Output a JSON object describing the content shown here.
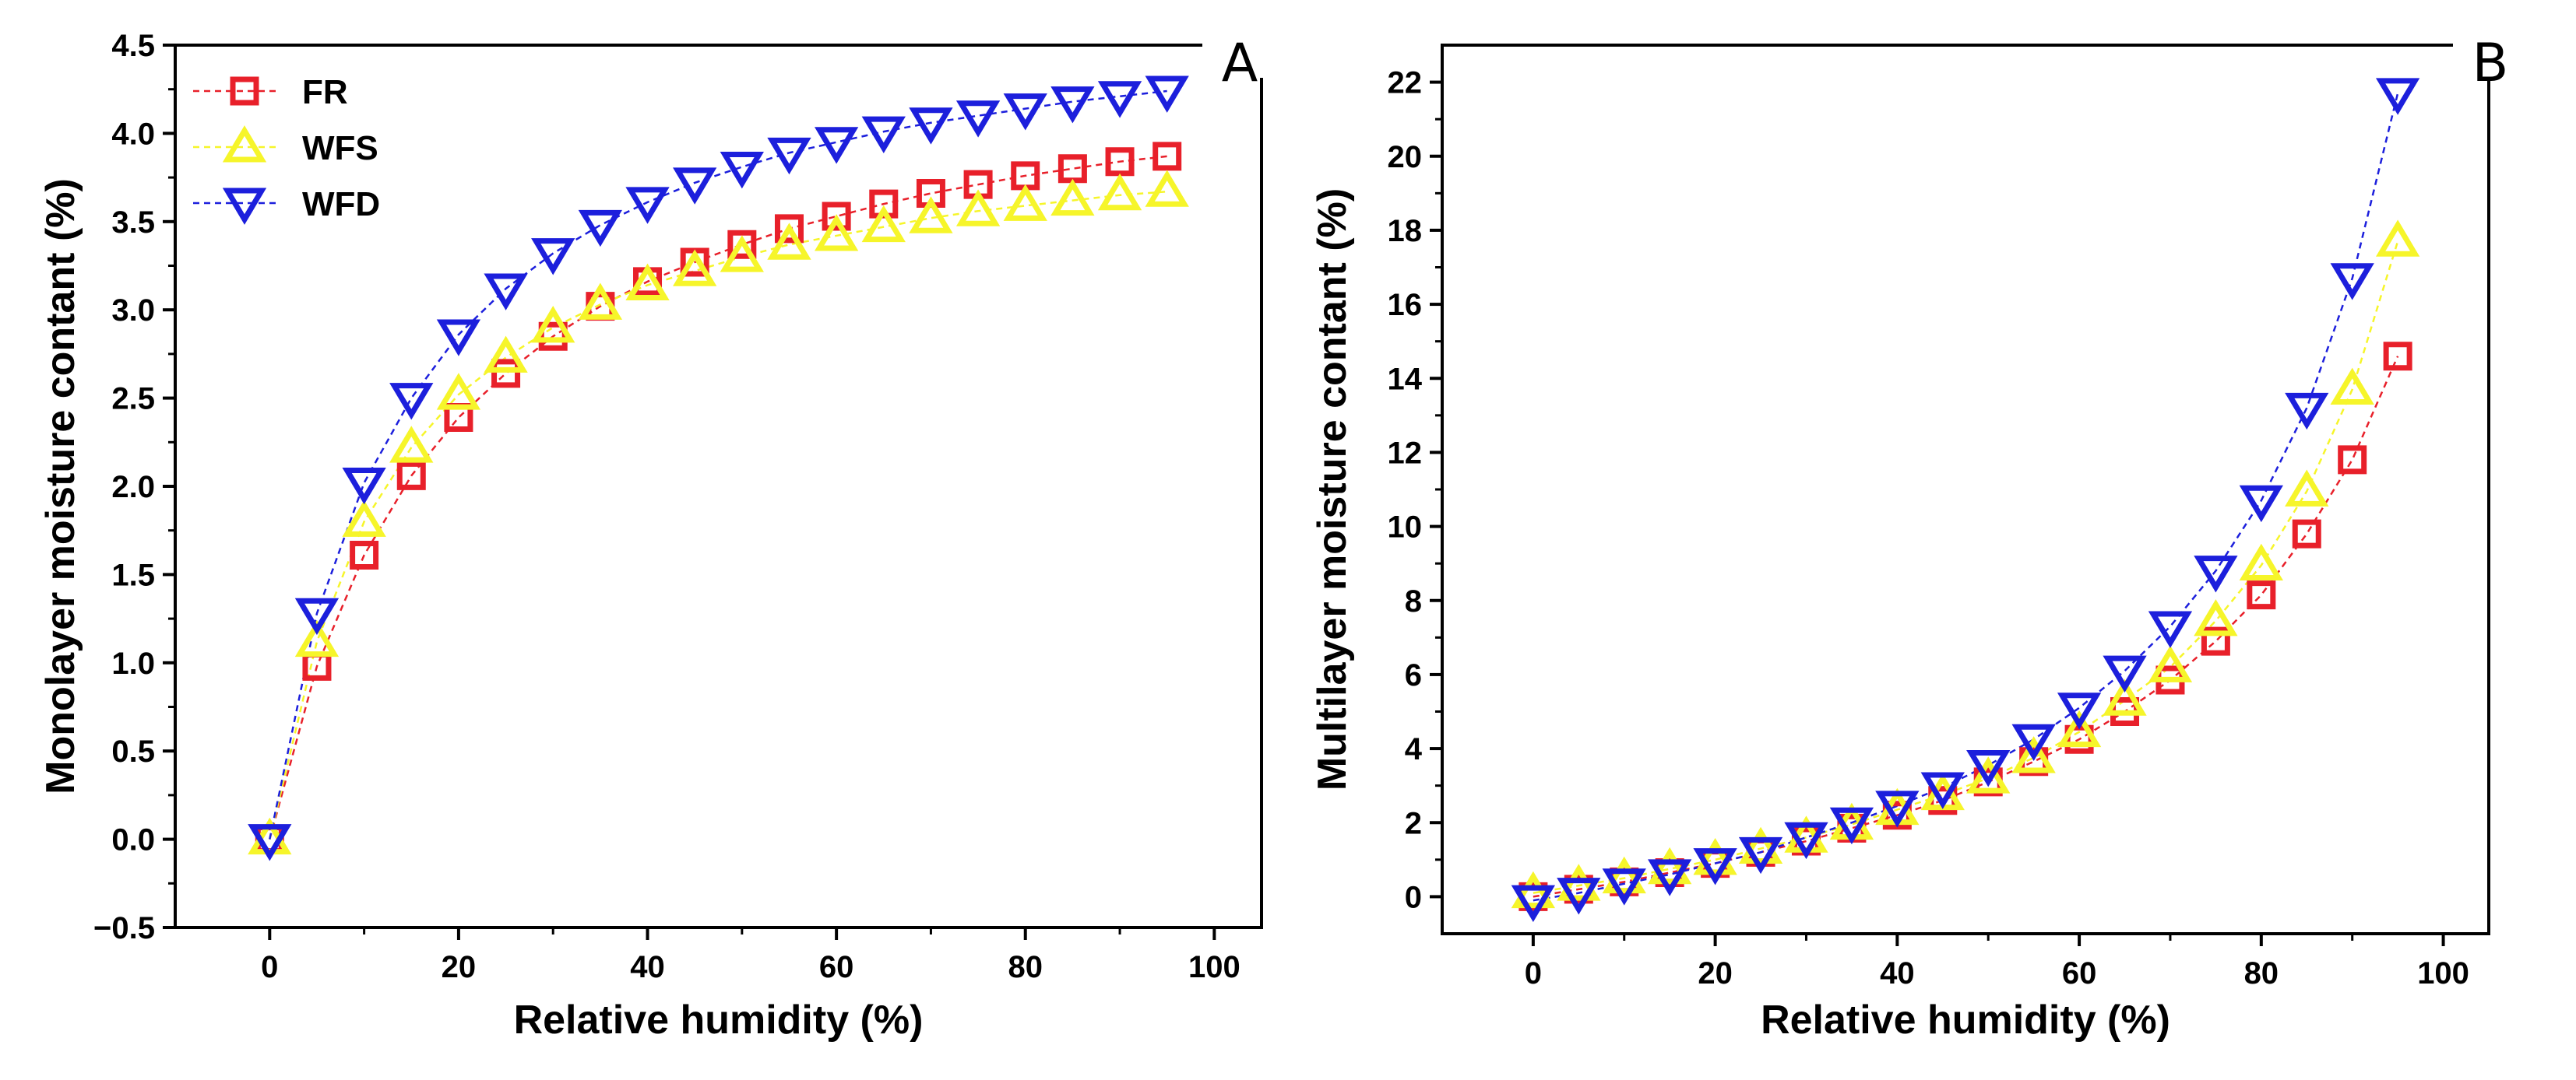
{
  "chart_data": [
    {
      "panel_label": "A",
      "type": "line",
      "xlabel": "Relative humidity (%)",
      "ylabel": "Monolayer moisture contant (%)",
      "xlim": [
        -10,
        105
      ],
      "ylim": [
        -0.5,
        4.5
      ],
      "xticks": [
        "0",
        "20",
        "40",
        "60",
        "80",
        "100"
      ],
      "yticks": [
        "−0.5",
        "0.0",
        "0.5",
        "1.0",
        "1.5",
        "2.0",
        "2.5",
        "3.0",
        "3.5",
        "4.0",
        "4.5"
      ],
      "x": [
        0,
        5,
        10,
        15,
        20,
        25,
        30,
        35,
        40,
        45,
        50,
        55,
        60,
        65,
        70,
        75,
        80,
        85,
        90,
        95
      ],
      "legend": "top-left",
      "series": [
        {
          "name": "FR",
          "marker": "square",
          "color": "#e8202a",
          "values": [
            0.0,
            0.98,
            1.61,
            2.06,
            2.39,
            2.64,
            2.85,
            3.02,
            3.16,
            3.27,
            3.37,
            3.46,
            3.53,
            3.6,
            3.66,
            3.71,
            3.76,
            3.8,
            3.84,
            3.87
          ]
        },
        {
          "name": "WFS",
          "marker": "triangle-up",
          "color": "#f6f52a",
          "values": [
            0.0,
            1.12,
            1.8,
            2.22,
            2.52,
            2.73,
            2.9,
            3.03,
            3.14,
            3.22,
            3.3,
            3.37,
            3.42,
            3.47,
            3.52,
            3.56,
            3.59,
            3.62,
            3.65,
            3.67
          ]
        },
        {
          "name": "WFD",
          "marker": "triangle-down",
          "color": "#1c1fdc",
          "values": [
            0.0,
            1.28,
            2.02,
            2.5,
            2.86,
            3.12,
            3.32,
            3.48,
            3.61,
            3.72,
            3.81,
            3.89,
            3.95,
            4.01,
            4.06,
            4.1,
            4.14,
            4.18,
            4.21,
            4.24
          ]
        }
      ]
    },
    {
      "panel_label": "B",
      "type": "line",
      "xlabel": "Relative humidity (%)",
      "ylabel": "Multilayer moisture contant (%)",
      "xlim": [
        -10,
        105
      ],
      "ylim": [
        -1,
        23
      ],
      "xticks": [
        "0",
        "20",
        "40",
        "60",
        "80",
        "100"
      ],
      "yticks": [
        "0",
        "2",
        "4",
        "6",
        "8",
        "10",
        "12",
        "14",
        "16",
        "18",
        "20",
        "22"
      ],
      "x": [
        0,
        5,
        10,
        15,
        20,
        25,
        30,
        35,
        40,
        45,
        50,
        55,
        60,
        65,
        70,
        75,
        80,
        85,
        90,
        95
      ],
      "series": [
        {
          "name": "FR",
          "marker": "square",
          "color": "#e8202a",
          "values": [
            0.0,
            0.2,
            0.4,
            0.65,
            0.9,
            1.2,
            1.5,
            1.85,
            2.2,
            2.6,
            3.1,
            3.65,
            4.25,
            5.0,
            5.85,
            6.9,
            8.15,
            9.8,
            11.8,
            14.6
          ]
        },
        {
          "name": "WFS",
          "marker": "triangle-up",
          "color": "#f6f52a",
          "values": [
            0.1,
            0.3,
            0.5,
            0.75,
            1.0,
            1.3,
            1.6,
            1.95,
            2.35,
            2.75,
            3.2,
            3.75,
            4.45,
            5.3,
            6.2,
            7.45,
            8.95,
            10.95,
            13.7,
            17.7
          ]
        },
        {
          "name": "WFD",
          "marker": "triangle-down",
          "color": "#1c1fdc",
          "values": [
            -0.1,
            0.1,
            0.35,
            0.6,
            0.9,
            1.2,
            1.6,
            2.0,
            2.45,
            2.95,
            3.55,
            4.25,
            5.1,
            6.1,
            7.3,
            8.8,
            10.7,
            13.2,
            16.7,
            21.7
          ]
        }
      ]
    }
  ]
}
